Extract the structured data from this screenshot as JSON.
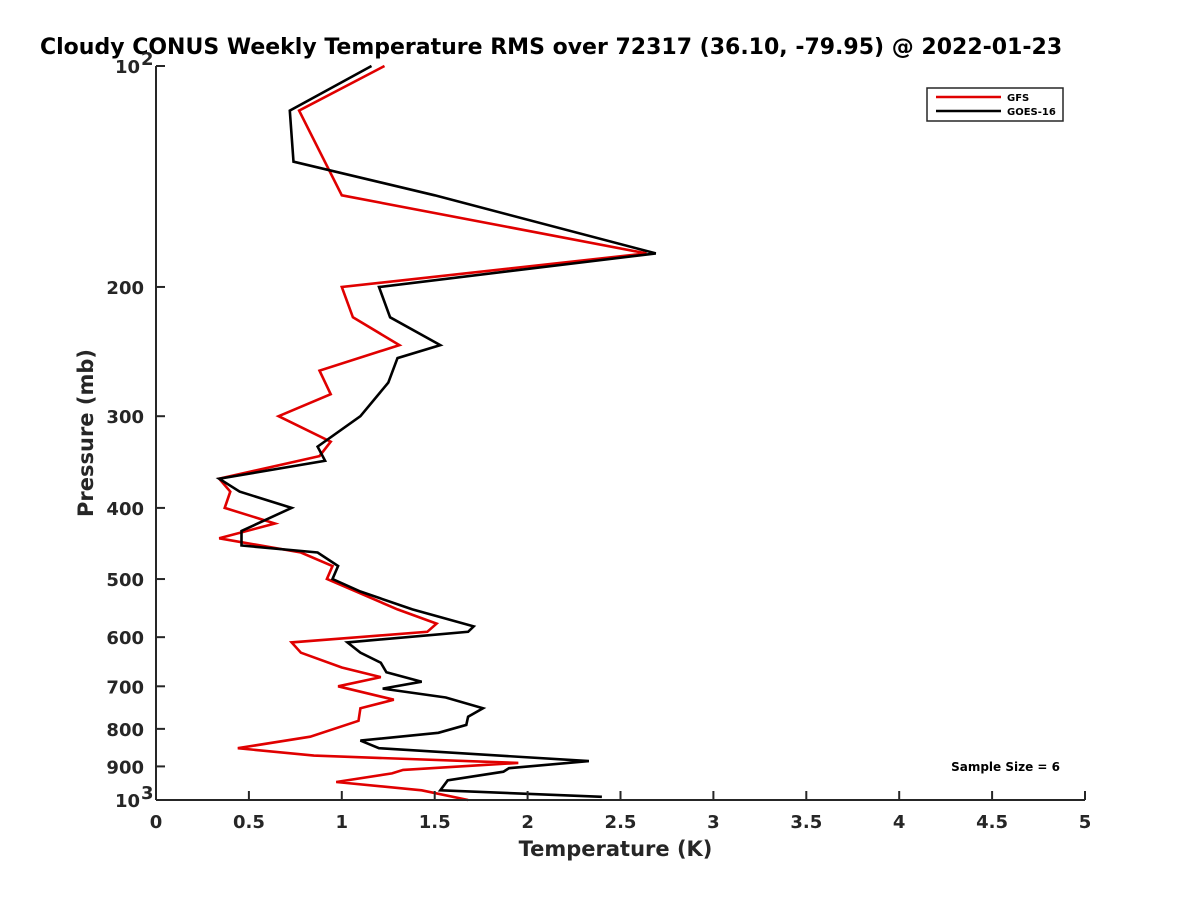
{
  "chart_data": {
    "type": "line",
    "title": "Cloudy CONUS Weekly Temperature RMS over 72317 (36.10, -79.95) @ 2022-01-23",
    "xlabel": "Temperature (K)",
    "ylabel": "Pressure (mb)",
    "xlim": [
      0,
      5
    ],
    "ylim": [
      100,
      1000
    ],
    "y_scale": "log",
    "y_reversed": true,
    "x_ticks": [
      0,
      0.5,
      1,
      1.5,
      2,
      2.5,
      3,
      3.5,
      4,
      4.5,
      5
    ],
    "x_tick_labels": [
      "0",
      "0.5",
      "1",
      "1.5",
      "2",
      "2.5",
      "3",
      "3.5",
      "4",
      "4.5",
      "5"
    ],
    "y_ticks": [
      {
        "value": 100,
        "base": "10",
        "exp": "2"
      },
      {
        "value": 200,
        "label": "200"
      },
      {
        "value": 300,
        "label": "300"
      },
      {
        "value": 400,
        "label": "400"
      },
      {
        "value": 500,
        "label": "500"
      },
      {
        "value": 600,
        "label": "600"
      },
      {
        "value": 700,
        "label": "700"
      },
      {
        "value": 800,
        "label": "800"
      },
      {
        "value": 900,
        "label": "900"
      },
      {
        "value": 1000,
        "base": "10",
        "exp": "3"
      }
    ],
    "legend_position": "top-right",
    "grid": false,
    "annotation": "Sample Size = 6",
    "series": [
      {
        "name": "GFS",
        "color": "#e00000",
        "points": [
          [
            1.23,
            100
          ],
          [
            0.77,
            115
          ],
          [
            1.0,
            150
          ],
          [
            2.64,
            180
          ],
          [
            1.0,
            200
          ],
          [
            1.06,
            220
          ],
          [
            1.31,
            240
          ],
          [
            0.88,
            260
          ],
          [
            0.94,
            280
          ],
          [
            0.66,
            300
          ],
          [
            0.94,
            325
          ],
          [
            0.88,
            340
          ],
          [
            0.34,
            365
          ],
          [
            0.4,
            380
          ],
          [
            0.37,
            400
          ],
          [
            0.64,
            420
          ],
          [
            0.34,
            440
          ],
          [
            0.78,
            460
          ],
          [
            0.95,
            480
          ],
          [
            0.92,
            500
          ],
          [
            1.3,
            550
          ],
          [
            1.51,
            575
          ],
          [
            1.46,
            590
          ],
          [
            0.73,
            610
          ],
          [
            0.78,
            630
          ],
          [
            1.0,
            660
          ],
          [
            1.21,
            680
          ],
          [
            0.98,
            700
          ],
          [
            1.28,
            730
          ],
          [
            1.1,
            750
          ],
          [
            1.09,
            780
          ],
          [
            0.83,
            820
          ],
          [
            0.44,
            850
          ],
          [
            0.85,
            870
          ],
          [
            1.95,
            890
          ],
          [
            1.33,
            910
          ],
          [
            1.27,
            920
          ],
          [
            0.97,
            945
          ],
          [
            1.43,
            970
          ],
          [
            1.68,
            1000
          ]
        ]
      },
      {
        "name": "GOES-16",
        "color": "#000000",
        "points": [
          [
            1.16,
            100
          ],
          [
            0.72,
            115
          ],
          [
            0.74,
            135
          ],
          [
            1.5,
            150
          ],
          [
            2.69,
            180
          ],
          [
            1.2,
            200
          ],
          [
            1.26,
            220
          ],
          [
            1.53,
            240
          ],
          [
            1.3,
            250
          ],
          [
            1.25,
            270
          ],
          [
            1.1,
            300
          ],
          [
            0.87,
            330
          ],
          [
            0.91,
            345
          ],
          [
            0.34,
            365
          ],
          [
            0.45,
            380
          ],
          [
            0.73,
            400
          ],
          [
            0.46,
            430
          ],
          [
            0.46,
            450
          ],
          [
            0.87,
            460
          ],
          [
            0.98,
            480
          ],
          [
            0.95,
            500
          ],
          [
            1.1,
            520
          ],
          [
            1.38,
            550
          ],
          [
            1.71,
            580
          ],
          [
            1.68,
            590
          ],
          [
            1.03,
            610
          ],
          [
            1.1,
            630
          ],
          [
            1.21,
            650
          ],
          [
            1.24,
            670
          ],
          [
            1.43,
            690
          ],
          [
            1.22,
            705
          ],
          [
            1.56,
            725
          ],
          [
            1.76,
            750
          ],
          [
            1.68,
            770
          ],
          [
            1.67,
            790
          ],
          [
            1.52,
            810
          ],
          [
            1.1,
            830
          ],
          [
            1.2,
            850
          ],
          [
            2.33,
            885
          ],
          [
            1.9,
            905
          ],
          [
            1.87,
            915
          ],
          [
            1.57,
            940
          ],
          [
            1.53,
            970
          ],
          [
            2.4,
            990
          ]
        ]
      }
    ]
  }
}
